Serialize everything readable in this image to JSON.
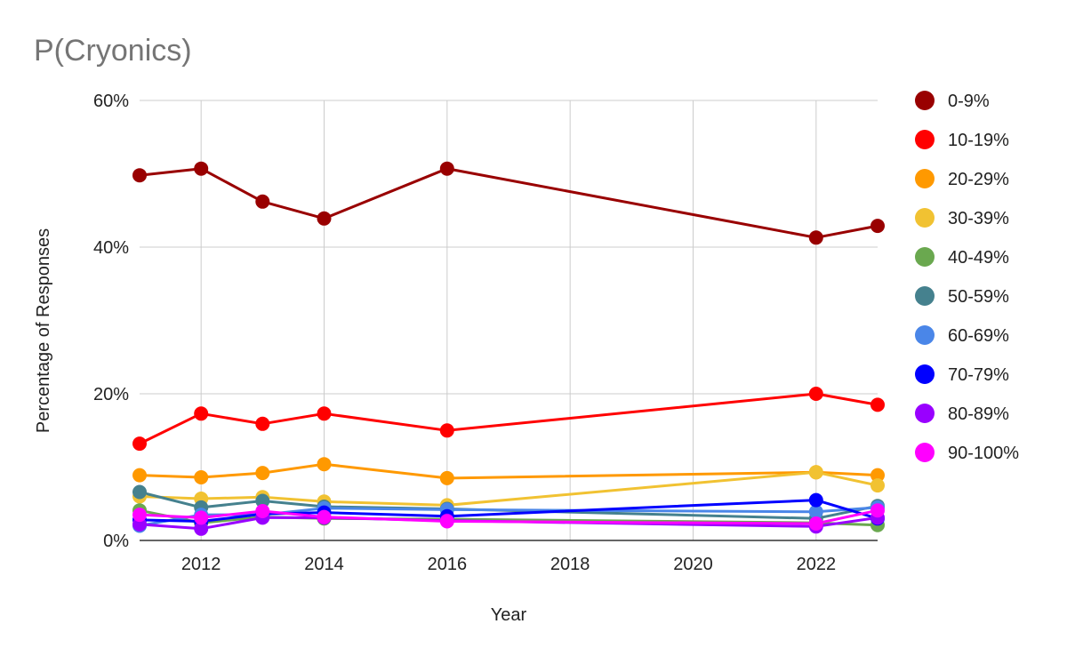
{
  "chart_data": {
    "type": "line",
    "title": "P(Cryonics)",
    "xlabel": "Year",
    "ylabel": "Percentage of Responses",
    "xlim": [
      2011,
      2023
    ],
    "ylim": [
      0,
      60
    ],
    "x_ticks": [
      2012,
      2014,
      2016,
      2018,
      2020,
      2022
    ],
    "x_tick_labels": [
      "2012",
      "2014",
      "2016",
      "2018",
      "2020",
      "2022"
    ],
    "y_ticks": [
      0,
      20,
      40,
      60
    ],
    "y_tick_labels": [
      "0%",
      "20%",
      "40%",
      "60%"
    ],
    "grid": true,
    "legend_position": "right",
    "x": [
      2011,
      2012,
      2013,
      2014,
      2016,
      2022,
      2023
    ],
    "series": [
      {
        "name": "0-9%",
        "color": "#990000",
        "values": [
          49.8,
          50.7,
          46.2,
          43.9,
          50.7,
          41.3,
          42.9
        ]
      },
      {
        "name": "10-19%",
        "color": "#ff0000",
        "values": [
          13.2,
          17.3,
          15.9,
          17.3,
          15.0,
          20.0,
          18.5
        ]
      },
      {
        "name": "20-29%",
        "color": "#ff9900",
        "values": [
          8.9,
          8.6,
          9.2,
          10.4,
          8.5,
          9.3,
          8.9
        ]
      },
      {
        "name": "30-39%",
        "color": "#f1c232",
        "values": [
          6.0,
          5.7,
          5.9,
          5.3,
          4.8,
          9.3,
          7.5
        ]
      },
      {
        "name": "40-49%",
        "color": "#6aa84f",
        "values": [
          4.1,
          2.4,
          3.2,
          3.0,
          2.9,
          2.4,
          2.1
        ]
      },
      {
        "name": "50-59%",
        "color": "#45818e",
        "values": [
          6.6,
          4.5,
          5.4,
          4.6,
          4.3,
          3.0,
          4.7
        ]
      },
      {
        "name": "60-69%",
        "color": "#4a86e8",
        "values": [
          2.0,
          3.5,
          3.5,
          4.4,
          4.2,
          3.9,
          4.5
        ]
      },
      {
        "name": "70-79%",
        "color": "#0000ff",
        "values": [
          2.8,
          2.6,
          3.6,
          3.8,
          3.3,
          5.5,
          3.0
        ]
      },
      {
        "name": "80-89%",
        "color": "#9900ff",
        "values": [
          2.2,
          1.6,
          3.1,
          3.1,
          2.7,
          1.9,
          3.1
        ]
      },
      {
        "name": "90-100%",
        "color": "#ff00ff",
        "values": [
          3.5,
          3.1,
          4.0,
          3.2,
          2.6,
          2.3,
          4.1
        ]
      }
    ]
  }
}
